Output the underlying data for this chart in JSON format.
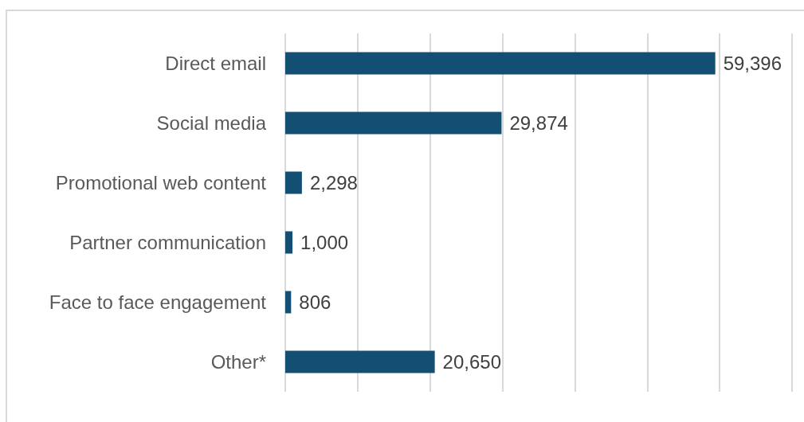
{
  "chart_data": {
    "type": "bar",
    "orientation": "horizontal",
    "categories": [
      "Direct email",
      "Social media",
      "Promotional web content",
      "Partner communication",
      "Face to face engagement",
      "Other*"
    ],
    "values": [
      59396,
      29874,
      2298,
      1000,
      806,
      20650
    ],
    "value_labels": [
      "59,396",
      "29,874",
      "2,298",
      "1,000",
      "806",
      "20,650"
    ],
    "color": "#134f73",
    "xlim": [
      0,
      70000
    ],
    "xticks": [
      {
        "value": 0,
        "label": null
      },
      {
        "value": 10000,
        "label": null
      },
      {
        "value": 20000,
        "label": null
      },
      {
        "value": 30000,
        "label": null
      },
      {
        "value": 40000,
        "label": null
      },
      {
        "value": 50000,
        "label": null
      },
      {
        "value": 60000,
        "label": null
      },
      {
        "value": 70000,
        "label": null
      }
    ],
    "grid": "x",
    "tick_labels": "y"
  }
}
